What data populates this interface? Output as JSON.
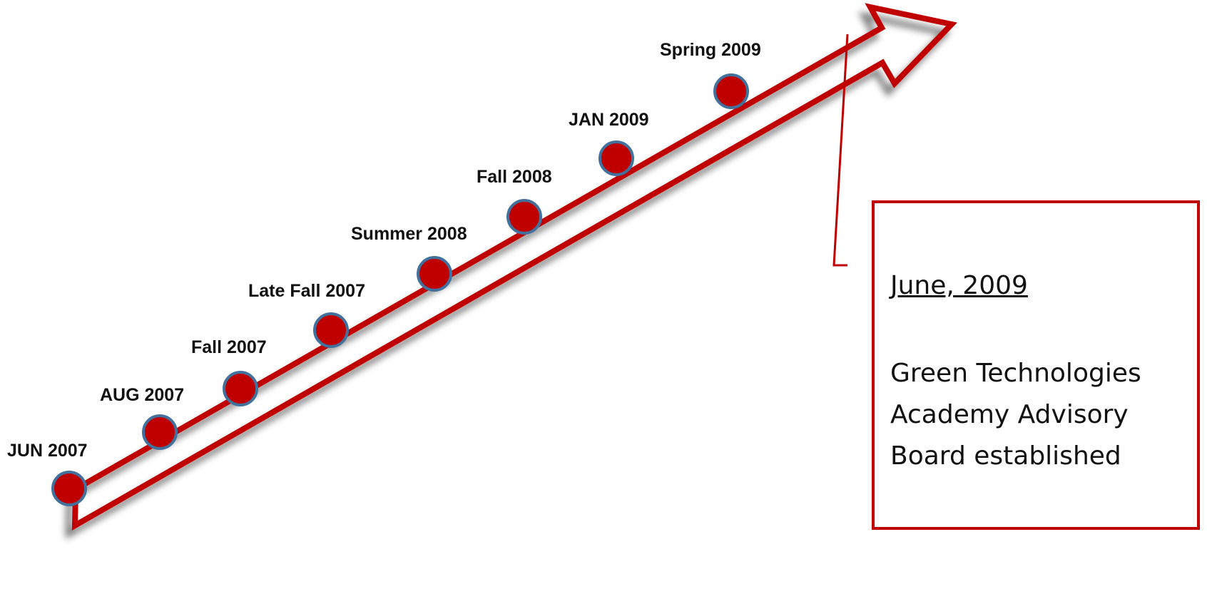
{
  "colors": {
    "accent": "#c00000",
    "node_fill": "#c00000",
    "node_stroke": "#41719c",
    "text": "#111111"
  },
  "timeline": {
    "milestones": [
      {
        "label": "JUN 2007"
      },
      {
        "label": "AUG 2007"
      },
      {
        "label": "Fall 2007"
      },
      {
        "label": "Late Fall 2007"
      },
      {
        "label": "Summer 2008"
      },
      {
        "label": "Fall 2008"
      },
      {
        "label": "JAN 2009"
      },
      {
        "label": "Spring 2009"
      }
    ]
  },
  "callout": {
    "date": "June, 2009",
    "description": "Green Technologies Academy Advisory Board established"
  }
}
